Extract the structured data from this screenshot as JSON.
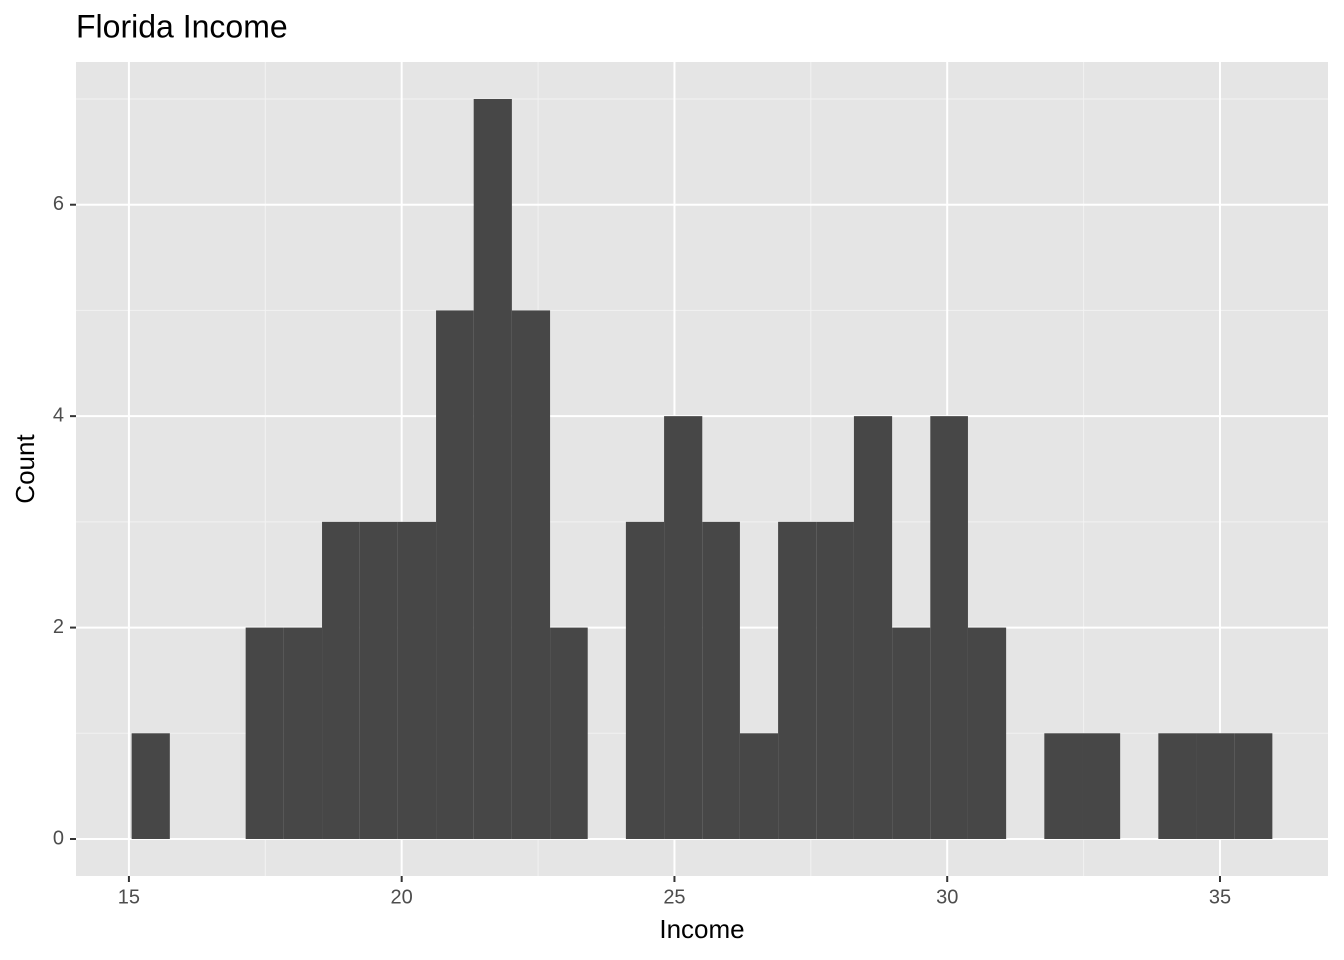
{
  "chart_data": {
    "type": "histogram",
    "title": "Florida Income",
    "xlabel": "Income",
    "ylabel": "Count",
    "bins": [
      15.05,
      15.75,
      16.44,
      17.14,
      17.84,
      18.54,
      19.23,
      19.93,
      20.63,
      21.32,
      22.02,
      22.72,
      23.41,
      24.11,
      24.81,
      25.51,
      26.2,
      26.9,
      27.6,
      28.29,
      28.99,
      29.69,
      30.38,
      31.08,
      31.78,
      32.48,
      33.17,
      33.87,
      34.57,
      35.26,
      35.96
    ],
    "values": [
      1,
      0,
      0,
      2,
      2,
      3,
      3,
      3,
      5,
      7,
      5,
      2,
      0,
      3,
      4,
      3,
      1,
      3,
      3,
      4,
      2,
      4,
      2,
      0,
      1,
      1,
      0,
      1,
      1,
      1
    ],
    "color": "#474747",
    "xlim": [
      14.03,
      36.98
    ],
    "ylim": [
      -0.35,
      7.35
    ],
    "xticks": [
      15,
      20,
      25,
      30,
      35
    ],
    "yticks": [
      0,
      2,
      4,
      6
    ],
    "xminor": [
      17.5,
      22.5,
      27.5,
      32.5
    ],
    "yminor": [
      1,
      3,
      5,
      7
    ],
    "grid": true
  }
}
